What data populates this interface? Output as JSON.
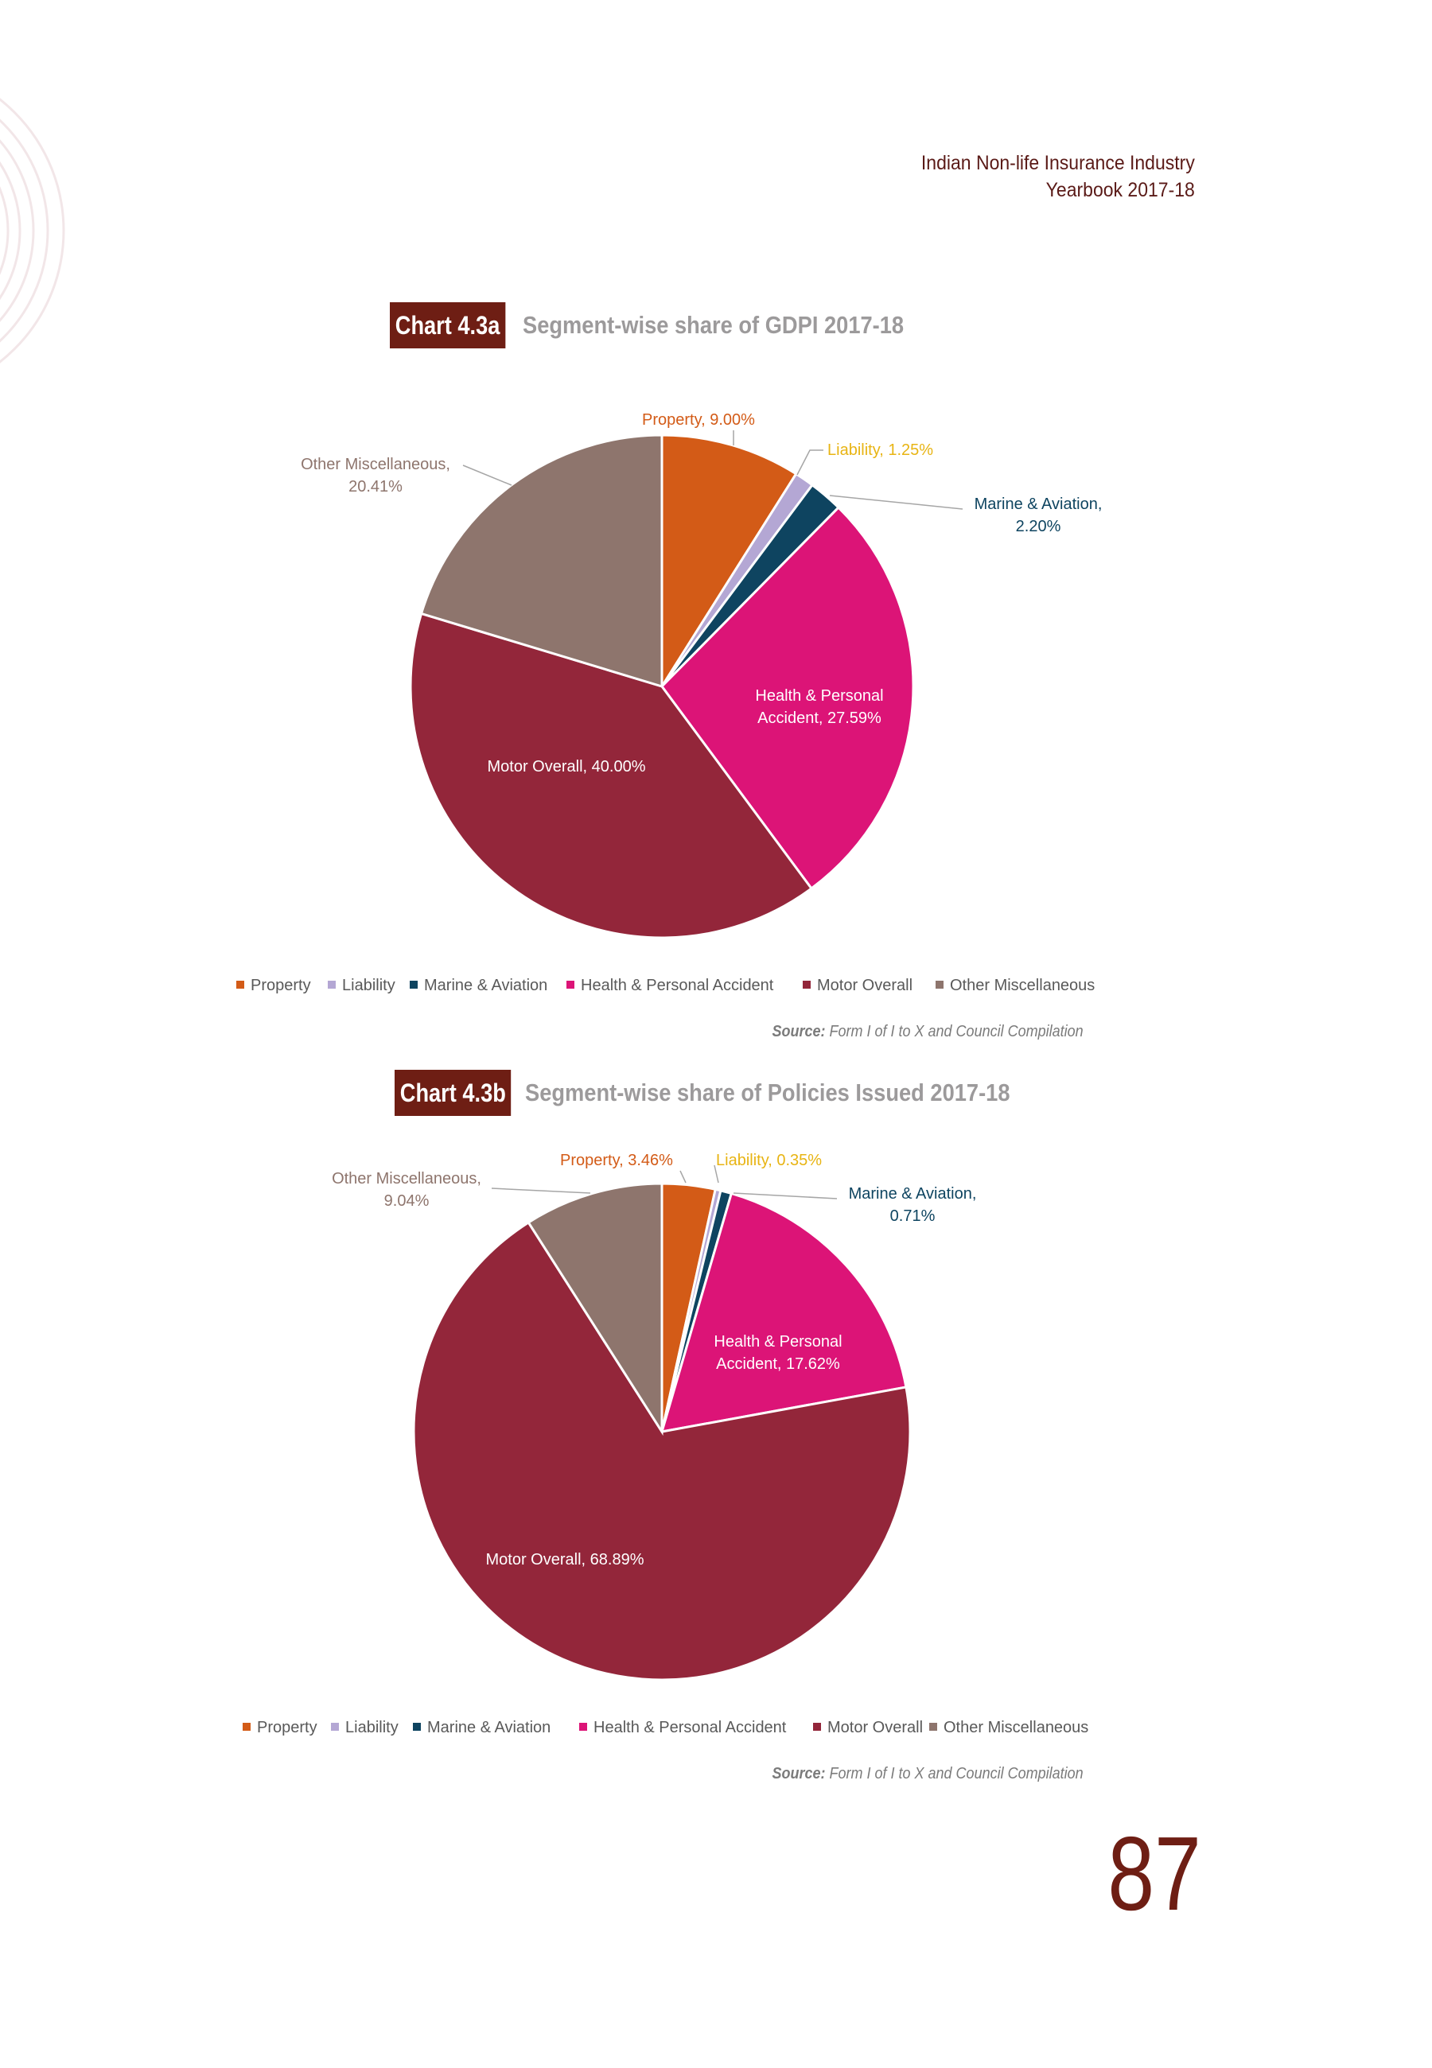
{
  "header": {
    "line1": "Indian Non-life Insurance Industry",
    "line2": "Yearbook 2017-18"
  },
  "page_number": "87",
  "colors": {
    "Property": "#d35b17",
    "Liability": "#b4a7d4",
    "Marine & Aviation": "#0e4460",
    "Health & Personal Accident": "#dc1477",
    "Motor Overall": "#93263a",
    "Other Miscellaneous": "#8e756d",
    "Liability_label": "#e8b413"
  },
  "chart_data": [
    {
      "type": "pie",
      "tag": "Chart 4.3a",
      "title": "Segment-wise share of GDPI 2017-18",
      "categories": [
        "Property",
        "Liability",
        "Marine & Aviation",
        "Health & Personal Accident",
        "Motor Overall",
        "Other Miscellaneous"
      ],
      "values": [
        9.0,
        1.25,
        2.2,
        27.59,
        40.0,
        20.41
      ],
      "data_labels": [
        [
          "Property, 9.00%"
        ],
        [
          "Liability, 1.25%"
        ],
        [
          "Marine & Aviation,",
          "2.20%"
        ],
        [
          "Health & Personal",
          "Accident, 27.59%"
        ],
        [
          "Motor Overall, 40.00%"
        ],
        [
          "Other Miscellaneous,",
          "20.41%"
        ]
      ],
      "legend": [
        "Property",
        "Liability",
        "Marine & Aviation",
        "Health & Personal Accident",
        "Motor Overall",
        "Other Miscellaneous"
      ],
      "legend_position": "bottom",
      "source_label": "Source:",
      "source_text": "Form I of I to X and Council Compilation"
    },
    {
      "type": "pie",
      "tag": "Chart 4.3b",
      "title": "Segment-wise share of Policies Issued 2017-18",
      "categories": [
        "Property",
        "Liability",
        "Marine & Aviation",
        "Health & Personal Accident",
        "Motor Overall",
        "Other Miscellaneous"
      ],
      "values": [
        3.46,
        0.35,
        0.71,
        17.62,
        68.89,
        9.04
      ],
      "data_labels": [
        [
          "Property, 3.46%"
        ],
        [
          "Liability, 0.35%"
        ],
        [
          "Marine & Aviation,",
          "0.71%"
        ],
        [
          "Health & Personal",
          "Accident, 17.62%"
        ],
        [
          "Motor Overall, 68.89%"
        ],
        [
          "Other Miscellaneous,",
          "9.04%"
        ]
      ],
      "legend": [
        "Property",
        "Liability",
        "Marine & Aviation",
        "Health & Personal Accident",
        "Motor Overall",
        "Other Miscellaneous"
      ],
      "legend_position": "bottom",
      "source_label": "Source:",
      "source_text": "Form I of I to X and Council Compilation"
    }
  ]
}
